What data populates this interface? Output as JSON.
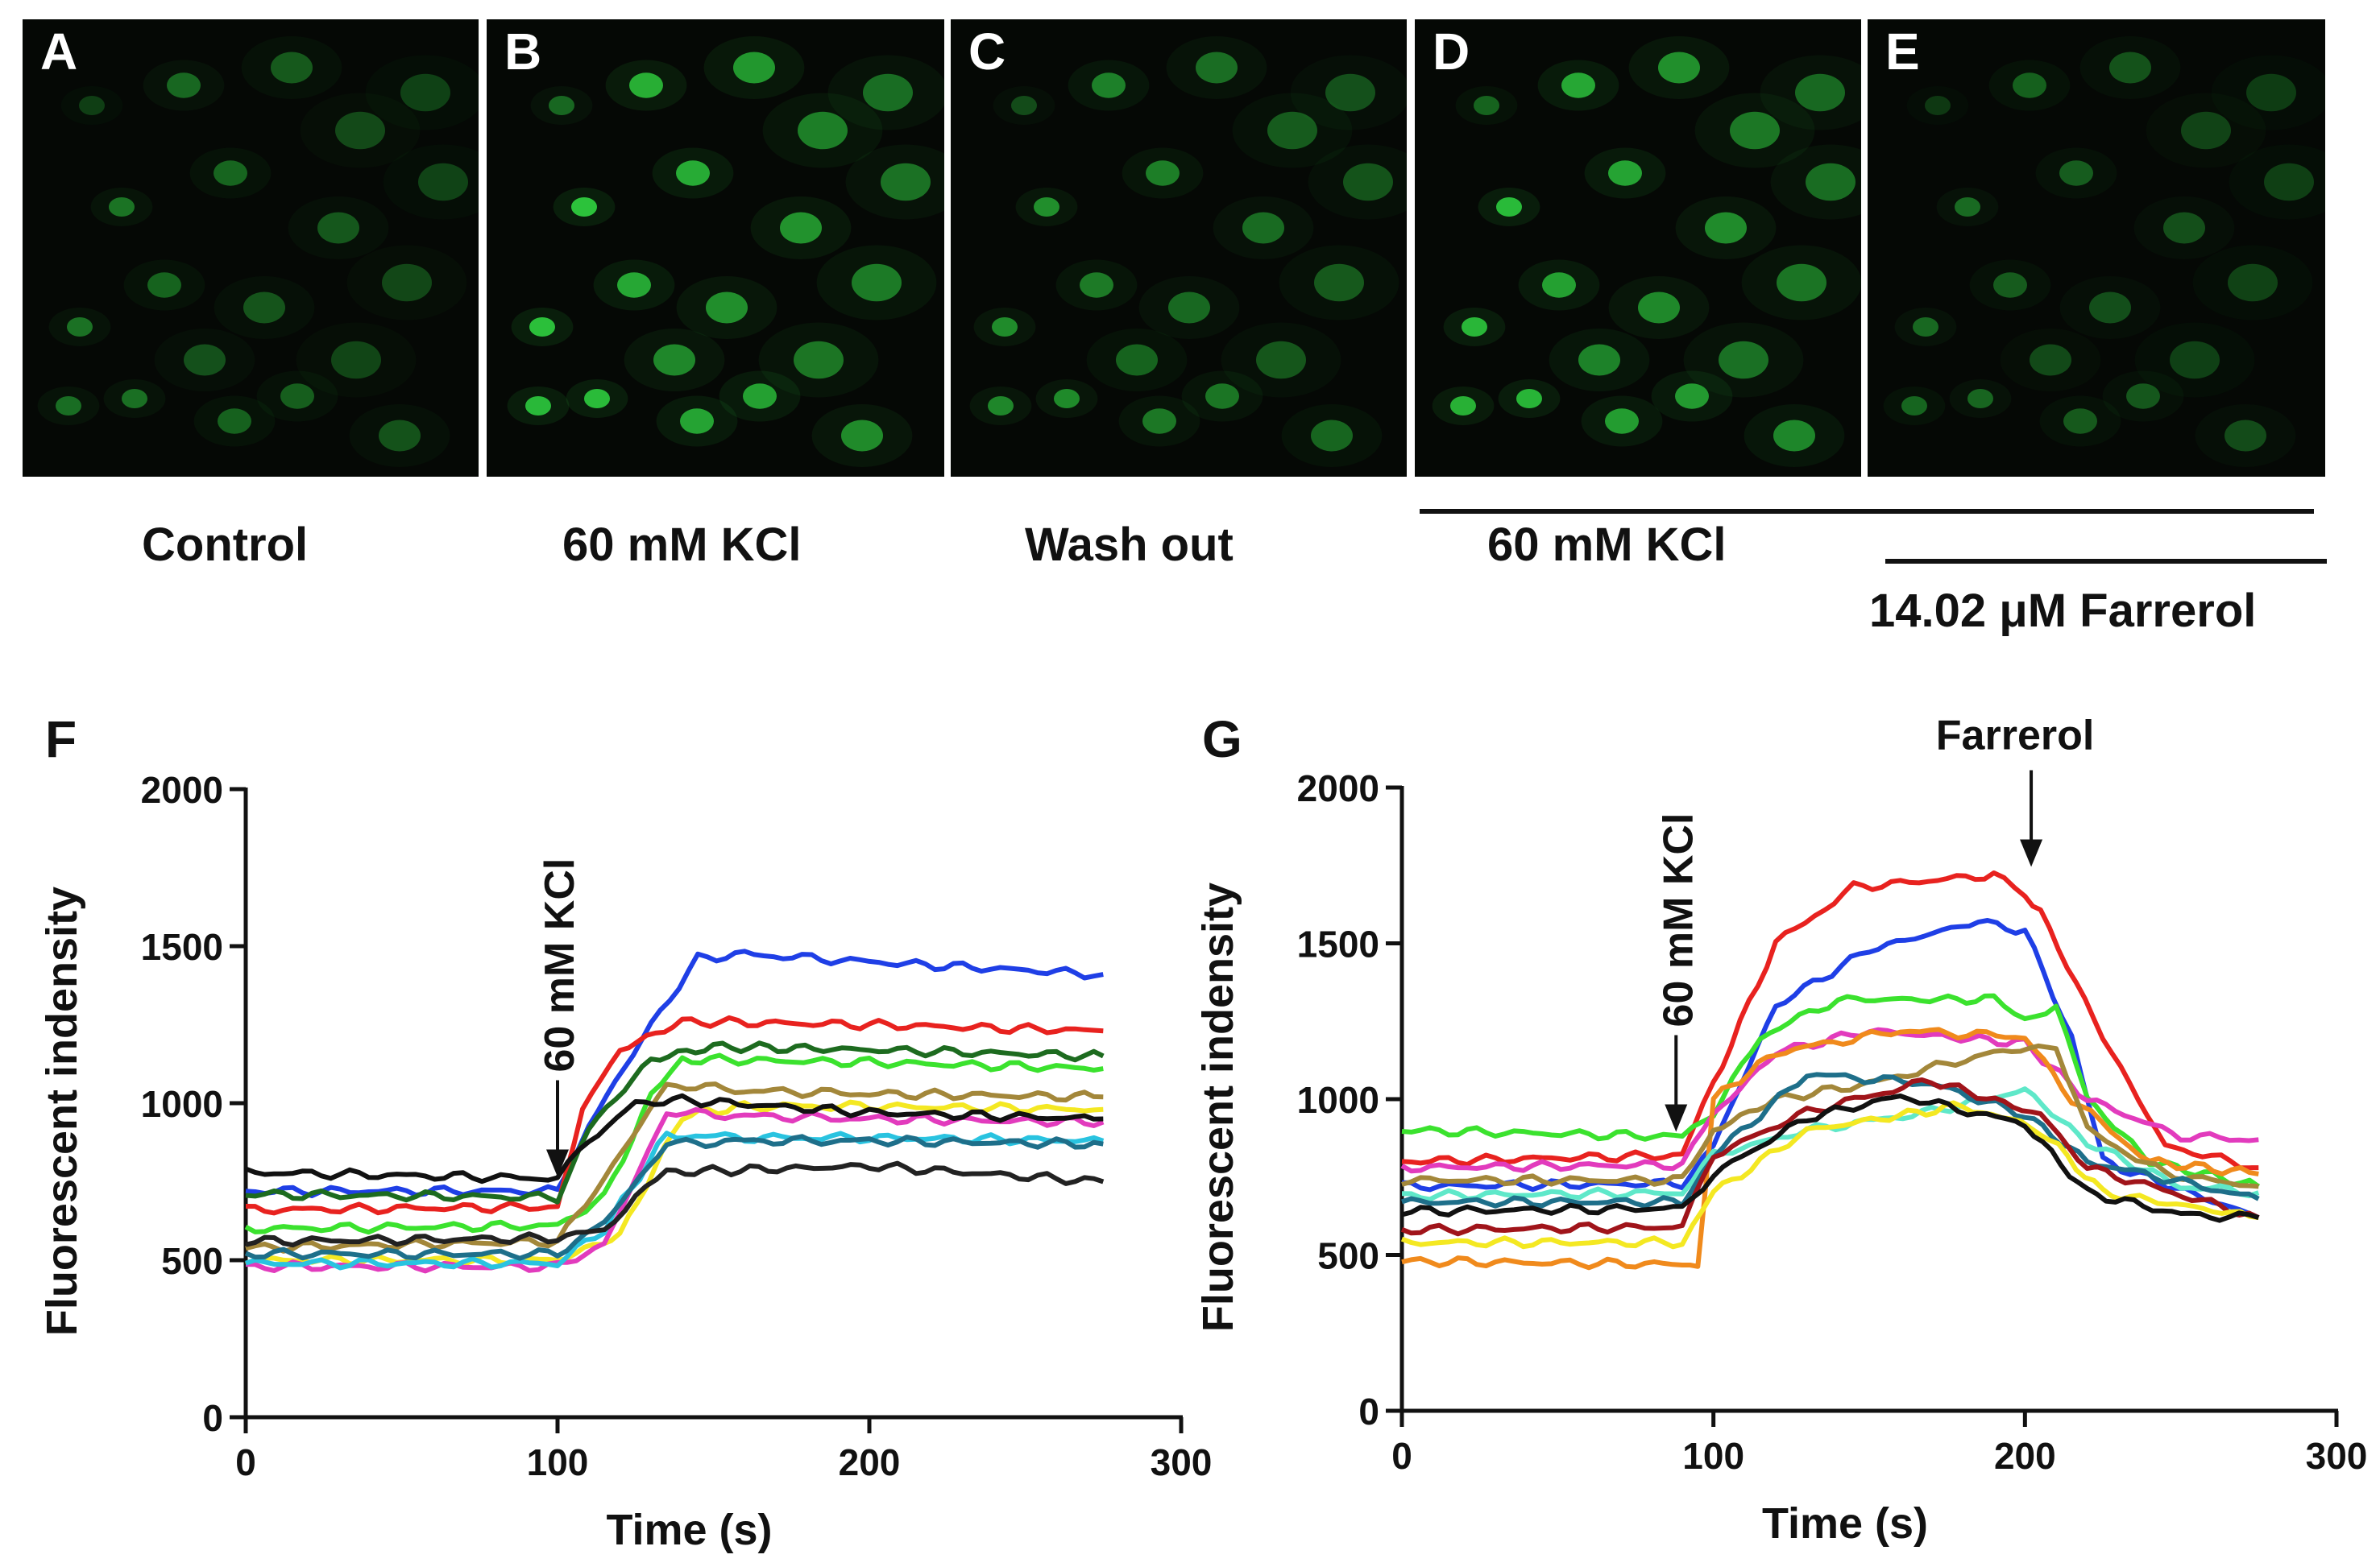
{
  "images": [
    {
      "letter": "A",
      "caption": "Control",
      "intensity": 0.55
    },
    {
      "letter": "B",
      "caption": "60 mM KCl",
      "intensity": 1.0
    },
    {
      "letter": "C",
      "caption": "Wash out",
      "intensity": 0.7
    },
    {
      "letter": "D",
      "caption": "",
      "intensity": 0.95
    },
    {
      "letter": "E",
      "caption": "",
      "intensity": 0.5
    }
  ],
  "brackets": {
    "kcl_label": "60 mM KCl",
    "farrerol_label": "14.02 μM Farrerol"
  },
  "colors": {
    "cell": "#2fd040",
    "background": "#050805"
  },
  "chart_data": [
    {
      "panel": "F",
      "type": "line",
      "xlabel": "Time (s)",
      "ylabel": "Fluorescent indensity",
      "xlim": [
        0,
        300
      ],
      "ylim": [
        0,
        2000
      ],
      "xticks": [
        0,
        100,
        200,
        300
      ],
      "yticks": [
        0,
        500,
        1000,
        1500,
        2000
      ],
      "annotations": [
        {
          "text": "60 mM KCl",
          "x": 100,
          "y": 750
        }
      ],
      "series": [
        {
          "name": "blue",
          "color": "#1f3fe6",
          "points": [
            [
              0,
              720
            ],
            [
              100,
              720
            ],
            [
              110,
              930
            ],
            [
              130,
              1250
            ],
            [
              145,
              1460
            ],
            [
              160,
              1475
            ],
            [
              200,
              1450
            ],
            [
              275,
              1410
            ]
          ]
        },
        {
          "name": "red",
          "color": "#e8221f",
          "points": [
            [
              0,
              660
            ],
            [
              100,
              670
            ],
            [
              108,
              980
            ],
            [
              120,
              1170
            ],
            [
              140,
              1260
            ],
            [
              200,
              1250
            ],
            [
              275,
              1230
            ]
          ]
        },
        {
          "name": "darkgreen",
          "color": "#1d6b1f",
          "points": [
            [
              0,
              710
            ],
            [
              100,
              700
            ],
            [
              110,
              920
            ],
            [
              130,
              1140
            ],
            [
              150,
              1180
            ],
            [
              200,
              1170
            ],
            [
              275,
              1150
            ]
          ]
        },
        {
          "name": "green",
          "color": "#3be22e",
          "points": [
            [
              0,
              600
            ],
            [
              100,
              610
            ],
            [
              115,
              700
            ],
            [
              130,
              1020
            ],
            [
              140,
              1140
            ],
            [
              200,
              1130
            ],
            [
              275,
              1110
            ]
          ]
        },
        {
          "name": "olive",
          "color": "#a3873a",
          "points": [
            [
              0,
              540
            ],
            [
              100,
              560
            ],
            [
              115,
              760
            ],
            [
              135,
              1060
            ],
            [
              160,
              1040
            ],
            [
              200,
              1030
            ],
            [
              275,
              1020
            ]
          ]
        },
        {
          "name": "yellow",
          "color": "#f4e822",
          "points": [
            [
              0,
              500
            ],
            [
              100,
              500
            ],
            [
              120,
              580
            ],
            [
              140,
              960
            ],
            [
              160,
              990
            ],
            [
              200,
              990
            ],
            [
              275,
              980
            ]
          ]
        },
        {
          "name": "magenta",
          "color": "#e23bbd",
          "points": [
            [
              0,
              480
            ],
            [
              100,
              480
            ],
            [
              115,
              550
            ],
            [
              135,
              970
            ],
            [
              160,
              960
            ],
            [
              200,
              950
            ],
            [
              275,
              940
            ]
          ]
        },
        {
          "name": "cyan",
          "color": "#29c3e0",
          "points": [
            [
              0,
              490
            ],
            [
              100,
              490
            ],
            [
              115,
              600
            ],
            [
              135,
              900
            ],
            [
              160,
              890
            ],
            [
              200,
              890
            ],
            [
              275,
              880
            ]
          ]
        },
        {
          "name": "teal",
          "color": "#1e6f8a",
          "points": [
            [
              0,
              520
            ],
            [
              100,
              520
            ],
            [
              115,
              620
            ],
            [
              135,
              870
            ],
            [
              160,
              880
            ],
            [
              200,
              880
            ],
            [
              275,
              870
            ]
          ]
        },
        {
          "name": "black",
          "color": "#111111",
          "points": [
            [
              0,
              780
            ],
            [
              100,
              760
            ],
            [
              110,
              880
            ],
            [
              125,
              1000
            ],
            [
              140,
              1010
            ],
            [
              200,
              970
            ],
            [
              275,
              950
            ]
          ]
        },
        {
          "name": "black2",
          "color": "#222222",
          "points": [
            [
              0,
              560
            ],
            [
              100,
              570
            ],
            [
              115,
              600
            ],
            [
              125,
              700
            ],
            [
              135,
              780
            ],
            [
              200,
              800
            ],
            [
              275,
              750
            ]
          ]
        }
      ]
    },
    {
      "panel": "G",
      "type": "line",
      "xlabel": "Time (s)",
      "ylabel": "Fluorescent indensity",
      "xlim": [
        0,
        300
      ],
      "ylim": [
        0,
        2000
      ],
      "xticks": [
        0,
        100,
        200,
        300
      ],
      "yticks": [
        0,
        500,
        1000,
        1500,
        2000
      ],
      "annotations": [
        {
          "text": "60 mM KCl",
          "x": 88,
          "y": 880
        },
        {
          "text": "Farrerol",
          "x": 202,
          "y": 1730
        }
      ],
      "series": [
        {
          "name": "red",
          "color": "#e8221f",
          "points": [
            [
              0,
              800
            ],
            [
              90,
              820
            ],
            [
              100,
              1050
            ],
            [
              120,
              1500
            ],
            [
              145,
              1680
            ],
            [
              190,
              1720
            ],
            [
              200,
              1650
            ],
            [
              205,
              1600
            ],
            [
              225,
              1200
            ],
            [
              245,
              850
            ],
            [
              275,
              780
            ]
          ]
        },
        {
          "name": "blue",
          "color": "#1f3fe6",
          "points": [
            [
              0,
              720
            ],
            [
              90,
              730
            ],
            [
              100,
              850
            ],
            [
              120,
              1300
            ],
            [
              150,
              1480
            ],
            [
              185,
              1570
            ],
            [
              200,
              1540
            ],
            [
              215,
              1200
            ],
            [
              225,
              800
            ],
            [
              275,
              620
            ]
          ]
        },
        {
          "name": "green",
          "color": "#3be22e",
          "points": [
            [
              0,
              900
            ],
            [
              90,
              880
            ],
            [
              100,
              960
            ],
            [
              115,
              1200
            ],
            [
              140,
              1320
            ],
            [
              190,
              1320
            ],
            [
              200,
              1260
            ],
            [
              210,
              1300
            ],
            [
              220,
              1000
            ],
            [
              240,
              800
            ],
            [
              275,
              720
            ]
          ]
        },
        {
          "name": "magenta",
          "color": "#e23bbd",
          "points": [
            [
              0,
              780
            ],
            [
              90,
              790
            ],
            [
              100,
              950
            ],
            [
              120,
              1150
            ],
            [
              150,
              1220
            ],
            [
              200,
              1180
            ],
            [
              220,
              1000
            ],
            [
              250,
              880
            ],
            [
              275,
              870
            ]
          ]
        },
        {
          "name": "orange",
          "color": "#f08a1c",
          "points": [
            [
              0,
              480
            ],
            [
              90,
              470
            ],
            [
              95,
              460
            ],
            [
              100,
              1000
            ],
            [
              120,
              1150
            ],
            [
              160,
              1220
            ],
            [
              200,
              1200
            ],
            [
              215,
              1000
            ],
            [
              240,
              800
            ],
            [
              275,
              760
            ]
          ]
        },
        {
          "name": "olive",
          "color": "#a3873a",
          "points": [
            [
              0,
              740
            ],
            [
              90,
              740
            ],
            [
              100,
              900
            ],
            [
              120,
              1000
            ],
            [
              150,
              1050
            ],
            [
              190,
              1150
            ],
            [
              210,
              1170
            ],
            [
              220,
              900
            ],
            [
              245,
              760
            ],
            [
              275,
              720
            ]
          ]
        },
        {
          "name": "cyan",
          "color": "#5fe8c9",
          "points": [
            [
              0,
              690
            ],
            [
              90,
              700
            ],
            [
              100,
              820
            ],
            [
              130,
              900
            ],
            [
              170,
              960
            ],
            [
              200,
              1030
            ],
            [
              220,
              860
            ],
            [
              250,
              720
            ],
            [
              275,
              700
            ]
          ]
        },
        {
          "name": "teal",
          "color": "#1e6f8a",
          "points": [
            [
              0,
              670
            ],
            [
              90,
              670
            ],
            [
              100,
              820
            ],
            [
              130,
              1080
            ],
            [
              170,
              1050
            ],
            [
              200,
              950
            ],
            [
              220,
              800
            ],
            [
              275,
              680
            ]
          ]
        },
        {
          "name": "darkred",
          "color": "#a0141a",
          "points": [
            [
              0,
              580
            ],
            [
              90,
              590
            ],
            [
              100,
              820
            ],
            [
              130,
              960
            ],
            [
              170,
              1060
            ],
            [
              205,
              950
            ],
            [
              220,
              780
            ],
            [
              275,
              620
            ]
          ]
        },
        {
          "name": "yellow",
          "color": "#f4e822",
          "points": [
            [
              0,
              540
            ],
            [
              90,
              540
            ],
            [
              100,
              700
            ],
            [
              130,
              900
            ],
            [
              180,
              980
            ],
            [
              205,
              900
            ],
            [
              225,
              700
            ],
            [
              275,
              620
            ]
          ]
        },
        {
          "name": "black",
          "color": "#111111",
          "points": [
            [
              0,
              640
            ],
            [
              90,
              650
            ],
            [
              100,
              760
            ],
            [
              130,
              940
            ],
            [
              160,
              1010
            ],
            [
              200,
              920
            ],
            [
              220,
              700
            ],
            [
              250,
              630
            ],
            [
              275,
              620
            ]
          ]
        }
      ]
    }
  ]
}
